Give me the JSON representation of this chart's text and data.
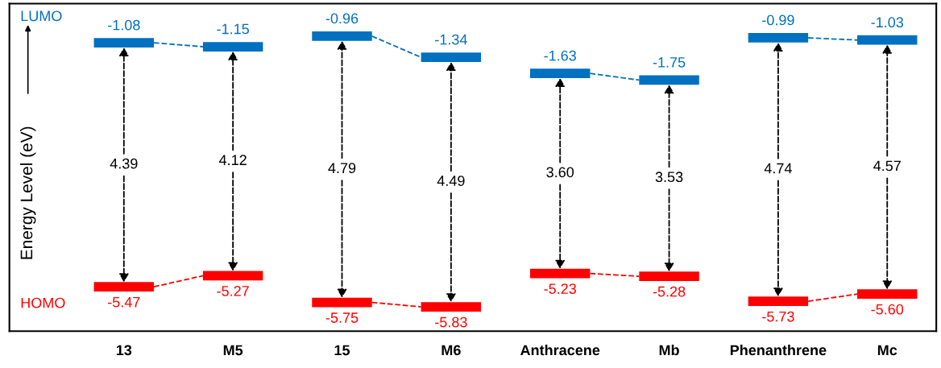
{
  "chart_data": {
    "type": "other",
    "ylabel": "Energy Level (eV)",
    "categories": [
      "13",
      "M5",
      "15",
      "M6",
      "Anthracene",
      "Mb",
      "Phenanthrene",
      "Mc"
    ],
    "series": [
      {
        "name": "LUMO",
        "color": "#0070c0",
        "values": [
          -1.08,
          -1.15,
          -0.96,
          -1.34,
          -1.63,
          -1.75,
          -0.99,
          -1.03
        ],
        "value_labels": [
          "-1.08",
          "-1.15",
          "-0.96",
          "-1.34",
          "-1.63",
          "-1.75",
          "-0.99",
          "-1.03"
        ]
      },
      {
        "name": "HOMO",
        "color": "#ff0000",
        "values": [
          -5.47,
          -5.27,
          -5.75,
          -5.83,
          -5.23,
          -5.28,
          -5.73,
          -5.6
        ],
        "value_labels": [
          "-5.47",
          "-5.27",
          "-5.75",
          "-5.83",
          "-5.23",
          "-5.28",
          "-5.73",
          "-5.60"
        ]
      }
    ],
    "annotations": [
      {
        "text": "4.39",
        "x": "13"
      },
      {
        "text": "4.12",
        "x": "M5"
      },
      {
        "text": "4.79",
        "x": "15"
      },
      {
        "text": "4.49",
        "x": "M6"
      },
      {
        "text": "3.60",
        "x": "Anthracene"
      },
      {
        "text": "3.53",
        "x": "Mb"
      },
      {
        "text": "4.74",
        "x": "Phenanthrene"
      },
      {
        "text": "4.57",
        "x": "Mc"
      }
    ]
  }
}
